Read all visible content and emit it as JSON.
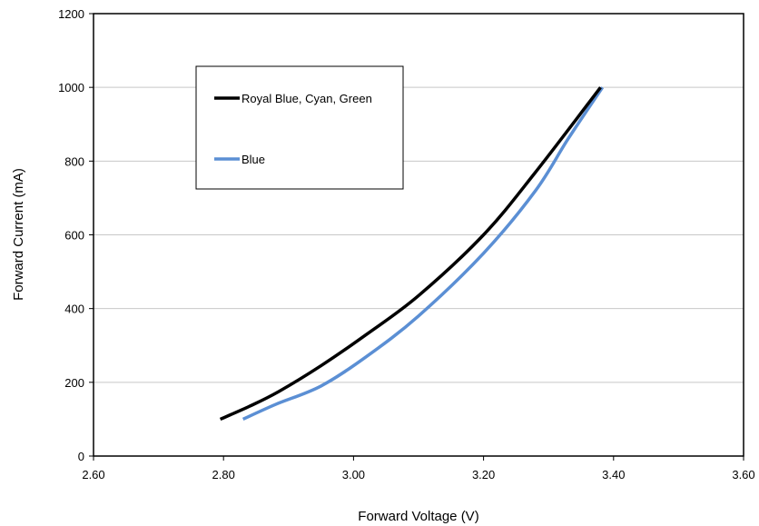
{
  "chart_data": {
    "type": "line",
    "xlabel": "Forward Voltage (V)",
    "ylabel": "Forward Current  (mA)",
    "xlim": [
      2.6,
      3.6
    ],
    "ylim": [
      0,
      1200
    ],
    "x_ticks": [
      "2.60",
      "2.80",
      "3.00",
      "3.20",
      "3.40",
      "3.60"
    ],
    "y_ticks": [
      "0",
      "200",
      "400",
      "600",
      "800",
      "1000",
      "1200"
    ],
    "grid": "horizontal",
    "legend_position": "upper-left",
    "series": [
      {
        "name": "Royal Blue, Cyan, Green",
        "color": "#000000",
        "x": [
          2.795,
          2.84,
          2.885,
          2.95,
          3.02,
          3.1,
          3.2,
          3.28,
          3.38
        ],
        "y": [
          100,
          135,
          175,
          245,
          330,
          435,
          600,
          770,
          1000
        ]
      },
      {
        "name": "Blue",
        "color": "#5b8fd4",
        "x": [
          2.83,
          2.88,
          2.95,
          3.02,
          3.1,
          3.2,
          3.28,
          3.33,
          3.383
        ],
        "y": [
          100,
          140,
          190,
          270,
          380,
          550,
          720,
          860,
          1000
        ]
      }
    ]
  }
}
